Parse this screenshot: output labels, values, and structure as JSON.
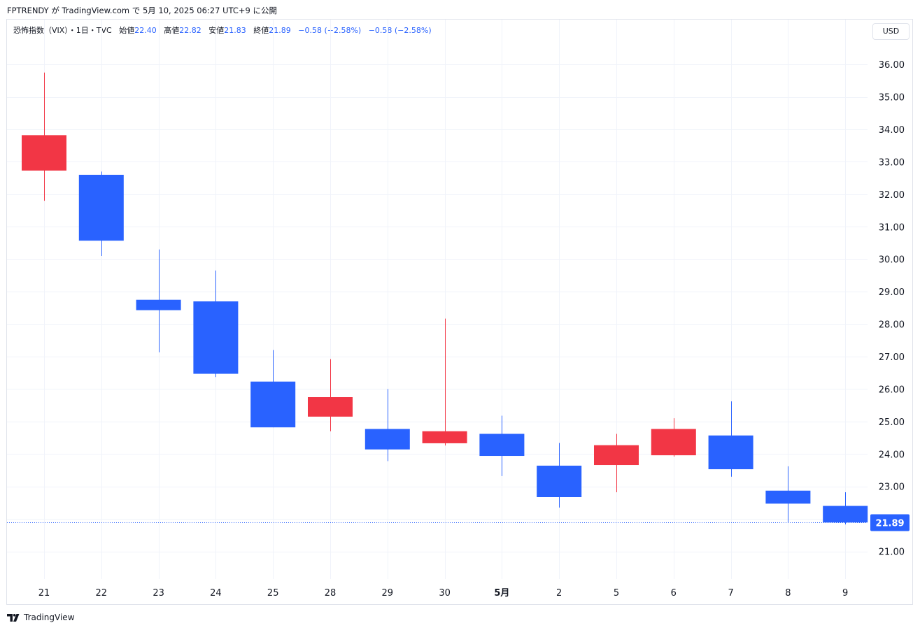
{
  "top_caption": "FPTRENDY が TradingView.com で 5月 10, 2025 06:27 UTC+9 に公開",
  "legend": {
    "symbol": "恐怖指数（VIX）・1日・TVC",
    "open_label": "始値",
    "open": "22.40",
    "high_label": "高値",
    "high": "22.82",
    "low_label": "安値",
    "low": "21.83",
    "close_label": "終値",
    "close": "21.89",
    "change1": "−0.58 (−2.58%)",
    "change2": "−0.58 (−2.58%)"
  },
  "currency_button": "USD",
  "brand": "TradingView",
  "colors": {
    "up": "#f23645",
    "down": "#2962ff",
    "grid": "#f0f3fa",
    "last_price": "#2962ff"
  },
  "chart_data": {
    "type": "candlestick",
    "title": "恐怖指数（VIX）・1日・TVC",
    "categories": [
      "21",
      "22",
      "23",
      "24",
      "25",
      "28",
      "29",
      "30",
      "5月",
      "2",
      "5",
      "6",
      "7",
      "8",
      "9"
    ],
    "bold_categories": [
      "5月"
    ],
    "ohlc": [
      {
        "open": 32.73,
        "high": 35.75,
        "low": 31.8,
        "close": 33.82
      },
      {
        "open": 32.6,
        "high": 32.7,
        "low": 30.1,
        "close": 30.57
      },
      {
        "open": 28.75,
        "high": 30.3,
        "low": 27.13,
        "close": 28.43
      },
      {
        "open": 28.7,
        "high": 29.65,
        "low": 26.37,
        "close": 26.47
      },
      {
        "open": 26.23,
        "high": 27.2,
        "low": 24.82,
        "close": 24.82
      },
      {
        "open": 25.15,
        "high": 26.92,
        "low": 24.7,
        "close": 25.75
      },
      {
        "open": 24.77,
        "high": 26.0,
        "low": 23.78,
        "close": 24.14
      },
      {
        "open": 24.33,
        "high": 28.17,
        "low": 24.26,
        "close": 24.7
      },
      {
        "open": 24.62,
        "high": 25.18,
        "low": 23.32,
        "close": 23.94
      },
      {
        "open": 23.64,
        "high": 24.34,
        "low": 22.35,
        "close": 22.67
      },
      {
        "open": 23.66,
        "high": 24.62,
        "low": 22.82,
        "close": 24.27
      },
      {
        "open": 23.96,
        "high": 25.1,
        "low": 23.92,
        "close": 24.77
      },
      {
        "open": 24.57,
        "high": 25.62,
        "low": 23.3,
        "close": 23.53
      },
      {
        "open": 22.87,
        "high": 23.62,
        "low": 21.88,
        "close": 22.47
      },
      {
        "open": 22.4,
        "high": 22.82,
        "low": 21.83,
        "close": 21.89
      }
    ],
    "y_ticks": [
      "21.00",
      "22.00",
      "23.00",
      "24.00",
      "25.00",
      "26.00",
      "27.00",
      "28.00",
      "29.00",
      "30.00",
      "31.00",
      "32.00",
      "33.00",
      "34.00",
      "35.00",
      "36.00"
    ],
    "ylim": [
      20.15,
      36.95
    ],
    "last_price": "21.89",
    "grid": true
  }
}
